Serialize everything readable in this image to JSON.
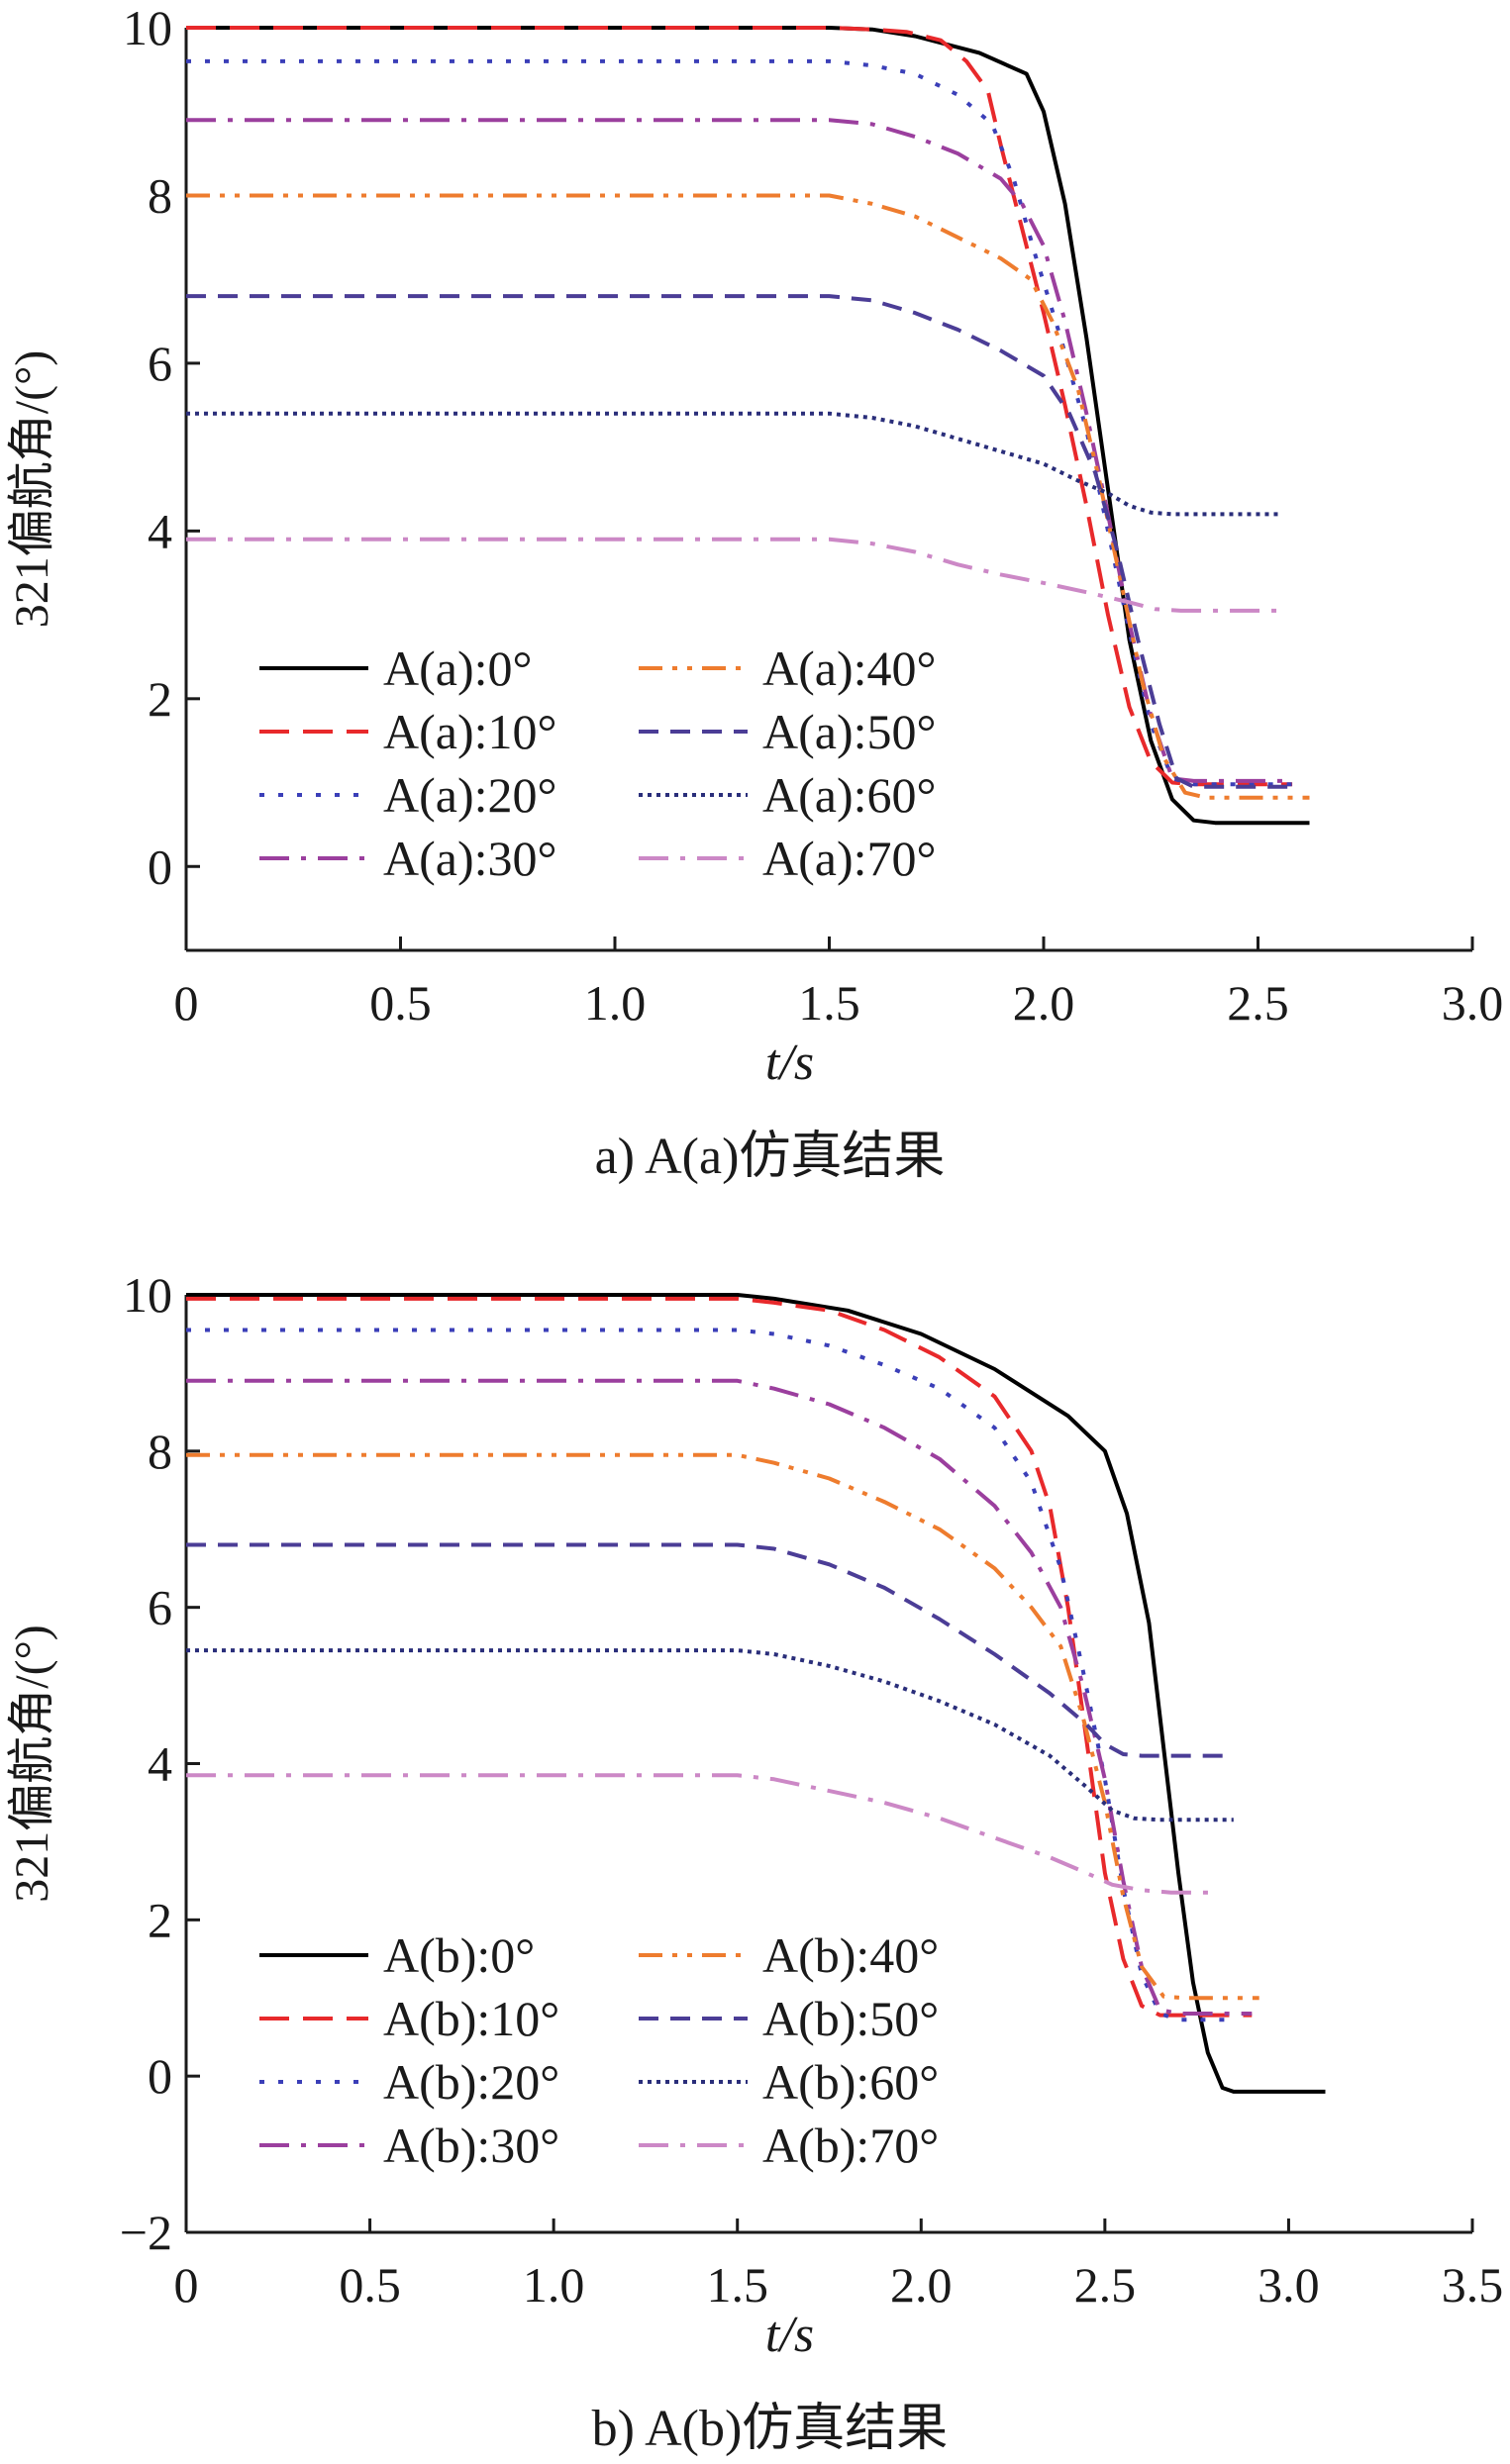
{
  "chart_data": [
    {
      "type": "line",
      "caption": "a) A(a)仿真结果",
      "xlabel": "t/s",
      "ylabel": "321偏航角/(°)",
      "xlim": [
        0,
        3.0
      ],
      "ylim": [
        -1,
        10
      ],
      "xticks": [
        0,
        0.5,
        1.0,
        1.5,
        2.0,
        2.5,
        3.0
      ],
      "xtick_labels": [
        "0",
        "0.5",
        "1.0",
        "1.5",
        "2.0",
        "2.5",
        "3.0"
      ],
      "yticks": [
        0,
        2,
        4,
        6,
        8,
        10
      ],
      "ytick_labels": [
        "0",
        "2",
        "4",
        "6",
        "8",
        "10"
      ],
      "legend_position": "bottom-left",
      "series": [
        {
          "name": "A(a):0°",
          "color": "#000000",
          "dash": "solid",
          "points": [
            [
              0,
              10
            ],
            [
              1.5,
              10
            ],
            [
              1.6,
              9.98
            ],
            [
              1.7,
              9.9
            ],
            [
              1.85,
              9.7
            ],
            [
              1.96,
              9.45
            ],
            [
              2.0,
              9.0
            ],
            [
              2.05,
              7.9
            ],
            [
              2.1,
              6.3
            ],
            [
              2.15,
              4.5
            ],
            [
              2.2,
              2.7
            ],
            [
              2.25,
              1.5
            ],
            [
              2.3,
              0.8
            ],
            [
              2.35,
              0.55
            ],
            [
              2.4,
              0.52
            ],
            [
              2.62,
              0.52
            ]
          ]
        },
        {
          "name": "A(a):10°",
          "color": "#e8292b",
          "dash": "longdash",
          "points": [
            [
              0,
              10
            ],
            [
              1.5,
              10
            ],
            [
              1.6,
              9.98
            ],
            [
              1.68,
              9.95
            ],
            [
              1.76,
              9.85
            ],
            [
              1.82,
              9.6
            ],
            [
              1.87,
              9.25
            ],
            [
              1.9,
              8.6
            ],
            [
              1.95,
              7.6
            ],
            [
              2.0,
              6.6
            ],
            [
              2.05,
              5.5
            ],
            [
              2.1,
              4.3
            ],
            [
              2.15,
              3.0
            ],
            [
              2.2,
              1.9
            ],
            [
              2.25,
              1.25
            ],
            [
              2.3,
              1.0
            ],
            [
              2.35,
              0.98
            ],
            [
              2.58,
              0.98
            ]
          ]
        },
        {
          "name": "A(a):20°",
          "color": "#3b3fb8",
          "dash": "dot",
          "points": [
            [
              0,
              9.6
            ],
            [
              1.5,
              9.6
            ],
            [
              1.6,
              9.55
            ],
            [
              1.7,
              9.45
            ],
            [
              1.8,
              9.2
            ],
            [
              1.88,
              8.85
            ],
            [
              1.93,
              8.2
            ],
            [
              1.98,
              7.3
            ],
            [
              2.04,
              6.3
            ],
            [
              2.1,
              5.2
            ],
            [
              2.15,
              4.0
            ],
            [
              2.2,
              2.8
            ],
            [
              2.25,
              1.7
            ],
            [
              2.3,
              1.05
            ],
            [
              2.35,
              0.98
            ],
            [
              2.58,
              0.98
            ]
          ]
        },
        {
          "name": "A(a):30°",
          "color": "#9b3f9e",
          "dash": "dashdot",
          "points": [
            [
              0,
              8.9
            ],
            [
              1.5,
              8.9
            ],
            [
              1.6,
              8.85
            ],
            [
              1.7,
              8.7
            ],
            [
              1.8,
              8.5
            ],
            [
              1.9,
              8.2
            ],
            [
              1.95,
              7.9
            ],
            [
              2.0,
              7.4
            ],
            [
              2.05,
              6.5
            ],
            [
              2.1,
              5.4
            ],
            [
              2.15,
              4.2
            ],
            [
              2.2,
              2.9
            ],
            [
              2.25,
              1.8
            ],
            [
              2.3,
              1.05
            ],
            [
              2.35,
              1.02
            ],
            [
              2.58,
              1.02
            ]
          ]
        },
        {
          "name": "A(a):40°",
          "color": "#ee7c2e",
          "dash": "dashdotdot",
          "points": [
            [
              0,
              8.0
            ],
            [
              1.5,
              8.0
            ],
            [
              1.6,
              7.9
            ],
            [
              1.7,
              7.75
            ],
            [
              1.8,
              7.5
            ],
            [
              1.9,
              7.25
            ],
            [
              1.97,
              7.0
            ],
            [
              2.02,
              6.5
            ],
            [
              2.08,
              5.7
            ],
            [
              2.13,
              4.6
            ],
            [
              2.18,
              3.4
            ],
            [
              2.23,
              2.2
            ],
            [
              2.28,
              1.3
            ],
            [
              2.33,
              0.88
            ],
            [
              2.38,
              0.82
            ],
            [
              2.62,
              0.82
            ]
          ]
        },
        {
          "name": "A(a):50°",
          "color": "#4b3d96",
          "dash": "dashed",
          "points": [
            [
              0,
              6.8
            ],
            [
              1.5,
              6.8
            ],
            [
              1.6,
              6.75
            ],
            [
              1.7,
              6.6
            ],
            [
              1.8,
              6.4
            ],
            [
              1.9,
              6.15
            ],
            [
              2.0,
              5.85
            ],
            [
              2.06,
              5.4
            ],
            [
              2.12,
              4.7
            ],
            [
              2.17,
              3.8
            ],
            [
              2.22,
              2.7
            ],
            [
              2.27,
              1.7
            ],
            [
              2.31,
              1.05
            ],
            [
              2.35,
              0.95
            ],
            [
              2.58,
              0.95
            ]
          ]
        },
        {
          "name": "A(a):60°",
          "color": "#2a2e7a",
          "dash": "densedot",
          "points": [
            [
              0,
              5.4
            ],
            [
              1.5,
              5.4
            ],
            [
              1.6,
              5.35
            ],
            [
              1.7,
              5.25
            ],
            [
              1.8,
              5.1
            ],
            [
              1.9,
              4.95
            ],
            [
              2.0,
              4.8
            ],
            [
              2.08,
              4.6
            ],
            [
              2.15,
              4.45
            ],
            [
              2.2,
              4.3
            ],
            [
              2.25,
              4.22
            ],
            [
              2.3,
              4.2
            ],
            [
              2.55,
              4.2
            ]
          ]
        },
        {
          "name": "A(a):70°",
          "color": "#cc88c6",
          "dash": "dashdot",
          "points": [
            [
              0,
              3.9
            ],
            [
              1.5,
              3.9
            ],
            [
              1.6,
              3.85
            ],
            [
              1.7,
              3.75
            ],
            [
              1.8,
              3.6
            ],
            [
              1.9,
              3.48
            ],
            [
              2.0,
              3.38
            ],
            [
              2.1,
              3.27
            ],
            [
              2.2,
              3.15
            ],
            [
              2.26,
              3.07
            ],
            [
              2.32,
              3.05
            ],
            [
              2.55,
              3.05
            ]
          ]
        }
      ]
    },
    {
      "type": "line",
      "caption": "b) A(b)仿真结果",
      "xlabel": "t/s",
      "ylabel": "321偏航角/(°)",
      "xlim": [
        0,
        3.5
      ],
      "ylim": [
        -2,
        10
      ],
      "xticks": [
        0,
        0.5,
        1.0,
        1.5,
        2.0,
        2.5,
        3.0,
        3.5
      ],
      "xtick_labels": [
        "0",
        "0.5",
        "1.0",
        "1.5",
        "2.0",
        "2.5",
        "3.0",
        "3.5"
      ],
      "yticks": [
        -2,
        0,
        2,
        4,
        6,
        8,
        10
      ],
      "ytick_labels": [
        "−2",
        "0",
        "2",
        "4",
        "6",
        "8",
        "10"
      ],
      "legend_position": "bottom-left",
      "series": [
        {
          "name": "A(b):0°",
          "color": "#000000",
          "dash": "solid",
          "points": [
            [
              0,
              10
            ],
            [
              1.5,
              10
            ],
            [
              1.6,
              9.95
            ],
            [
              1.8,
              9.8
            ],
            [
              2.0,
              9.5
            ],
            [
              2.2,
              9.05
            ],
            [
              2.4,
              8.45
            ],
            [
              2.5,
              8.0
            ],
            [
              2.56,
              7.2
            ],
            [
              2.62,
              5.8
            ],
            [
              2.66,
              4.2
            ],
            [
              2.7,
              2.6
            ],
            [
              2.74,
              1.2
            ],
            [
              2.78,
              0.3
            ],
            [
              2.82,
              -0.15
            ],
            [
              2.85,
              -0.2
            ],
            [
              3.1,
              -0.2
            ]
          ]
        },
        {
          "name": "A(b):10°",
          "color": "#e8292b",
          "dash": "longdash",
          "points": [
            [
              0,
              9.95
            ],
            [
              1.5,
              9.95
            ],
            [
              1.6,
              9.9
            ],
            [
              1.75,
              9.8
            ],
            [
              1.9,
              9.55
            ],
            [
              2.05,
              9.2
            ],
            [
              2.2,
              8.7
            ],
            [
              2.3,
              8.0
            ],
            [
              2.35,
              7.3
            ],
            [
              2.4,
              6.0
            ],
            [
              2.45,
              4.3
            ],
            [
              2.5,
              2.6
            ],
            [
              2.55,
              1.5
            ],
            [
              2.6,
              0.9
            ],
            [
              2.65,
              0.78
            ],
            [
              2.9,
              0.78
            ]
          ]
        },
        {
          "name": "A(b):20°",
          "color": "#3b3fb8",
          "dash": "dot",
          "points": [
            [
              0,
              9.55
            ],
            [
              1.5,
              9.55
            ],
            [
              1.6,
              9.5
            ],
            [
              1.75,
              9.35
            ],
            [
              1.9,
              9.1
            ],
            [
              2.05,
              8.8
            ],
            [
              2.2,
              8.3
            ],
            [
              2.3,
              7.6
            ],
            [
              2.38,
              6.5
            ],
            [
              2.44,
              5.2
            ],
            [
              2.5,
              3.8
            ],
            [
              2.55,
              2.4
            ],
            [
              2.6,
              1.3
            ],
            [
              2.65,
              0.8
            ],
            [
              2.7,
              0.72
            ],
            [
              2.85,
              0.72
            ]
          ]
        },
        {
          "name": "A(b):30°",
          "color": "#9b3f9e",
          "dash": "dashdot",
          "points": [
            [
              0,
              8.9
            ],
            [
              1.5,
              8.9
            ],
            [
              1.6,
              8.8
            ],
            [
              1.75,
              8.6
            ],
            [
              1.9,
              8.3
            ],
            [
              2.05,
              7.9
            ],
            [
              2.2,
              7.3
            ],
            [
              2.3,
              6.7
            ],
            [
              2.38,
              6.0
            ],
            [
              2.44,
              5.0
            ],
            [
              2.5,
              3.8
            ],
            [
              2.55,
              2.5
            ],
            [
              2.6,
              1.4
            ],
            [
              2.65,
              0.85
            ],
            [
              2.7,
              0.8
            ],
            [
              2.9,
              0.8
            ]
          ]
        },
        {
          "name": "A(b):40°",
          "color": "#ee7c2e",
          "dash": "dashdotdot",
          "points": [
            [
              0,
              7.95
            ],
            [
              1.5,
              7.95
            ],
            [
              1.6,
              7.85
            ],
            [
              1.75,
              7.65
            ],
            [
              1.9,
              7.35
            ],
            [
              2.05,
              7.0
            ],
            [
              2.2,
              6.5
            ],
            [
              2.3,
              6.0
            ],
            [
              2.38,
              5.5
            ],
            [
              2.44,
              4.6
            ],
            [
              2.5,
              3.5
            ],
            [
              2.55,
              2.3
            ],
            [
              2.6,
              1.4
            ],
            [
              2.66,
              1.02
            ],
            [
              2.72,
              1.0
            ],
            [
              2.92,
              1.0
            ]
          ]
        },
        {
          "name": "A(b):50°",
          "color": "#4b3d96",
          "dash": "dashed",
          "points": [
            [
              0,
              6.8
            ],
            [
              1.5,
              6.8
            ],
            [
              1.6,
              6.75
            ],
            [
              1.75,
              6.55
            ],
            [
              1.9,
              6.25
            ],
            [
              2.05,
              5.85
            ],
            [
              2.2,
              5.4
            ],
            [
              2.35,
              4.9
            ],
            [
              2.45,
              4.5
            ],
            [
              2.5,
              4.25
            ],
            [
              2.55,
              4.12
            ],
            [
              2.6,
              4.1
            ],
            [
              2.85,
              4.1
            ]
          ]
        },
        {
          "name": "A(b):60°",
          "color": "#2a2e7a",
          "dash": "densedot",
          "points": [
            [
              0,
              5.45
            ],
            [
              1.5,
              5.45
            ],
            [
              1.6,
              5.4
            ],
            [
              1.75,
              5.25
            ],
            [
              1.9,
              5.05
            ],
            [
              2.05,
              4.8
            ],
            [
              2.2,
              4.5
            ],
            [
              2.35,
              4.1
            ],
            [
              2.45,
              3.7
            ],
            [
              2.52,
              3.4
            ],
            [
              2.58,
              3.3
            ],
            [
              2.65,
              3.28
            ],
            [
              2.85,
              3.28
            ]
          ]
        },
        {
          "name": "A(b):70°",
          "color": "#cc88c6",
          "dash": "dashdot",
          "points": [
            [
              0,
              3.85
            ],
            [
              1.5,
              3.85
            ],
            [
              1.6,
              3.8
            ],
            [
              1.75,
              3.65
            ],
            [
              1.9,
              3.5
            ],
            [
              2.05,
              3.3
            ],
            [
              2.2,
              3.05
            ],
            [
              2.35,
              2.8
            ],
            [
              2.45,
              2.6
            ],
            [
              2.52,
              2.45
            ],
            [
              2.6,
              2.38
            ],
            [
              2.68,
              2.35
            ],
            [
              2.8,
              2.35
            ]
          ]
        }
      ]
    }
  ]
}
